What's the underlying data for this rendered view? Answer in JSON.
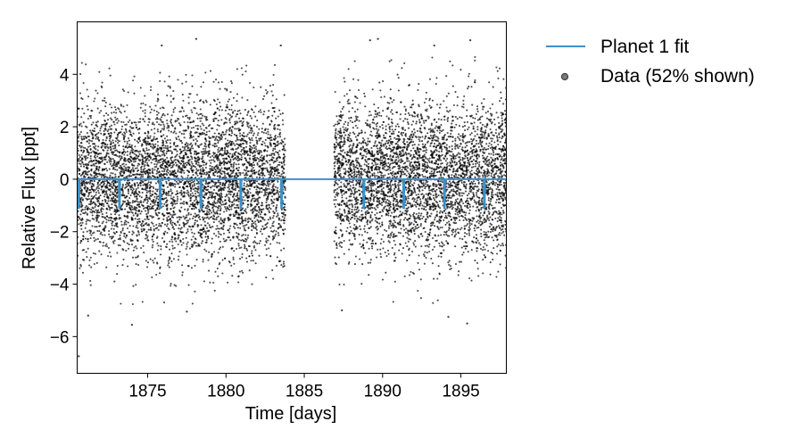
{
  "chart_data": {
    "type": "scatter",
    "xlabel": "Time [days]",
    "ylabel": "Relative Flux [ppt]",
    "xlim": [
      1870.5,
      1897.9
    ],
    "ylim": [
      -7.4,
      6.0
    ],
    "x_ticks": [
      1875,
      1880,
      1885,
      1890,
      1895
    ],
    "y_ticks": [
      -6,
      -4,
      -2,
      0,
      2,
      4
    ],
    "x_tick_labels": [
      "1875",
      "1880",
      "1885",
      "1890",
      "1895"
    ],
    "y_tick_labels": [
      "−6",
      "−4",
      "−2",
      "0",
      "2",
      "4"
    ],
    "legend_position": "outside-right",
    "series": [
      {
        "name": "Planet 1 fit",
        "kind": "line",
        "color": "#3c91c8",
        "baseline": 0.0,
        "transit_times": [
          1870.6,
          1873.2,
          1875.8,
          1878.4,
          1880.95,
          1883.55,
          1888.8,
          1891.35,
          1893.95,
          1896.5
        ],
        "transit_depth": -1.1
      },
      {
        "name": "Data (52% shown)",
        "kind": "scatter",
        "color": "#000000",
        "segments": [
          [
            1870.5,
            1883.8
          ],
          [
            1886.9,
            1897.9
          ]
        ],
        "scatter_sigma": 1.45,
        "outliers": [
          {
            "x": 1870.6,
            "y": -6.75
          },
          {
            "x": 1871.2,
            "y": -5.2
          },
          {
            "x": 1874.0,
            "y": -5.55
          },
          {
            "x": 1875.9,
            "y": 5.1
          },
          {
            "x": 1877.5,
            "y": -5.05
          },
          {
            "x": 1878.1,
            "y": 5.35
          },
          {
            "x": 1883.5,
            "y": 5.1
          },
          {
            "x": 1887.4,
            "y": -5.0
          },
          {
            "x": 1889.2,
            "y": 5.3
          },
          {
            "x": 1889.7,
            "y": 5.35
          },
          {
            "x": 1893.3,
            "y": 5.1
          },
          {
            "x": 1894.2,
            "y": -5.25
          },
          {
            "x": 1895.4,
            "y": -5.5
          },
          {
            "x": 1895.6,
            "y": 5.3
          }
        ]
      }
    ]
  }
}
